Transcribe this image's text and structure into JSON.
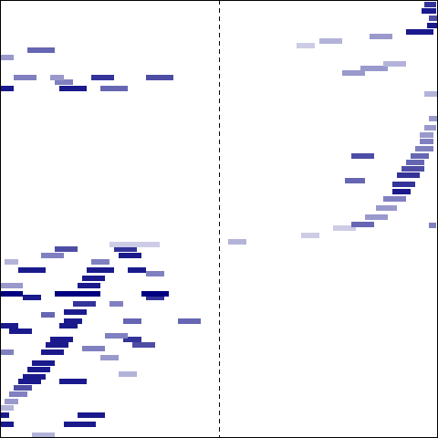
{
  "chart_data": {
    "type": "heatmap",
    "color": "#000080",
    "clim": [
      0,
      1
    ],
    "xlim": [
      0,
      480
    ],
    "ylim": [
      0,
      480
    ],
    "tick_labels": false,
    "grid": false,
    "vline": 240,
    "line_style": "dashed",
    "segments": [
      {
        "x": [
          30,
          60
        ],
        "y": 425,
        "value": 0.6
      },
      {
        "x": [
          0,
          15
        ],
        "y": 417,
        "value": 0.4
      },
      {
        "x": [
          15,
          40
        ],
        "y": 395,
        "value": 0.5
      },
      {
        "x": [
          100,
          125
        ],
        "y": 395,
        "value": 0.8
      },
      {
        "x": [
          160,
          190
        ],
        "y": 395,
        "value": 0.7
      },
      {
        "x": [
          55,
          70
        ],
        "y": 395,
        "value": 0.4
      },
      {
        "x": [
          60,
          80
        ],
        "y": 390,
        "value": 0.5
      },
      {
        "x": [
          0,
          15
        ],
        "y": 383,
        "value": 0.9
      },
      {
        "x": [
          65,
          95
        ],
        "y": 383,
        "value": 0.9
      },
      {
        "x": [
          110,
          140
        ],
        "y": 383,
        "value": 0.6
      },
      {
        "x": [
          120,
          175
        ],
        "y": 212,
        "value": 0.2
      },
      {
        "x": [
          60,
          85
        ],
        "y": 207,
        "value": 0.7
      },
      {
        "x": [
          125,
          150
        ],
        "y": 207,
        "value": 0.8
      },
      {
        "x": [
          45,
          70
        ],
        "y": 200,
        "value": 0.5
      },
      {
        "x": [
          130,
          155
        ],
        "y": 200,
        "value": 0.9
      },
      {
        "x": [
          5,
          20
        ],
        "y": 193,
        "value": 0.3
      },
      {
        "x": [
          100,
          120
        ],
        "y": 193,
        "value": 0.5
      },
      {
        "x": [
          20,
          50
        ],
        "y": 184,
        "value": 0.9
      },
      {
        "x": [
          95,
          125
        ],
        "y": 184,
        "value": 0.9
      },
      {
        "x": [
          140,
          160
        ],
        "y": 184,
        "value": 0.9
      },
      {
        "x": [
          160,
          180
        ],
        "y": 180,
        "value": 0.5
      },
      {
        "x": [
          90,
          115
        ],
        "y": 175,
        "value": 0.9
      },
      {
        "x": [
          0,
          25
        ],
        "y": 167,
        "value": 0.4
      },
      {
        "x": [
          85,
          110
        ],
        "y": 167,
        "value": 0.9
      },
      {
        "x": [
          0,
          25
        ],
        "y": 158,
        "value": 1
      },
      {
        "x": [
          60,
          110
        ],
        "y": 158,
        "value": 1
      },
      {
        "x": [
          155,
          185
        ],
        "y": 158,
        "value": 1
      },
      {
        "x": [
          25,
          45
        ],
        "y": 154,
        "value": 0.9
      },
      {
        "x": [
          160,
          180
        ],
        "y": 154,
        "value": 0.8
      },
      {
        "x": [
          80,
          105
        ],
        "y": 147,
        "value": 0.8
      },
      {
        "x": [
          120,
          135
        ],
        "y": 147,
        "value": 0.5
      },
      {
        "x": [
          70,
          95
        ],
        "y": 138,
        "value": 0.9
      },
      {
        "x": [
          45,
          60
        ],
        "y": 135,
        "value": 0.6
      },
      {
        "x": [
          70,
          90
        ],
        "y": 128,
        "value": 0.9
      },
      {
        "x": [
          135,
          155
        ],
        "y": 128,
        "value": 0.6
      },
      {
        "x": [
          195,
          220
        ],
        "y": 128,
        "value": 0.6
      },
      {
        "x": [
          0,
          20
        ],
        "y": 123,
        "value": 0.9
      },
      {
        "x": [
          65,
          85
        ],
        "y": 123,
        "value": 0.9
      },
      {
        "x": [
          10,
          35
        ],
        "y": 117,
        "value": 0.9
      },
      {
        "x": [
          115,
          140
        ],
        "y": 112,
        "value": 0.5
      },
      {
        "x": [
          55,
          80
        ],
        "y": 108,
        "value": 0.9
      },
      {
        "x": [
          135,
          155
        ],
        "y": 108,
        "value": 0.8
      },
      {
        "x": [
          50,
          75
        ],
        "y": 102,
        "value": 0.9
      },
      {
        "x": [
          145,
          170
        ],
        "y": 102,
        "value": 0.7
      },
      {
        "x": [
          90,
          115
        ],
        "y": 98,
        "value": 0.5
      },
      {
        "x": [
          0,
          15
        ],
        "y": 94,
        "value": 0.5
      },
      {
        "x": [
          45,
          70
        ],
        "y": 94,
        "value": 0.9
      },
      {
        "x": [
          110,
          130
        ],
        "y": 88,
        "value": 0.4
      },
      {
        "x": [
          35,
          60
        ],
        "y": 82,
        "value": 0.9
      },
      {
        "x": [
          30,
          55
        ],
        "y": 75,
        "value": 0.9
      },
      {
        "x": [
          130,
          150
        ],
        "y": 70,
        "value": 0.3
      },
      {
        "x": [
          25,
          50
        ],
        "y": 67,
        "value": 0.9
      },
      {
        "x": [
          20,
          45
        ],
        "y": 62,
        "value": 0.9
      },
      {
        "x": [
          65,
          95
        ],
        "y": 62,
        "value": 0.9
      },
      {
        "x": [
          15,
          35
        ],
        "y": 55,
        "value": 0.7
      },
      {
        "x": [
          10,
          30
        ],
        "y": 48,
        "value": 0.5
      },
      {
        "x": [
          5,
          20
        ],
        "y": 40,
        "value": 0.4
      },
      {
        "x": [
          0,
          15
        ],
        "y": 33,
        "value": 0.3
      },
      {
        "x": [
          0,
          10
        ],
        "y": 25,
        "value": 0.9
      },
      {
        "x": [
          85,
          115
        ],
        "y": 25,
        "value": 0.9
      },
      {
        "x": [
          0,
          15
        ],
        "y": 15,
        "value": 0.9
      },
      {
        "x": [
          70,
          105
        ],
        "y": 15,
        "value": 0.9
      },
      {
        "x": [
          35,
          60
        ],
        "y": 3,
        "value": 0.3
      },
      {
        "x": [
          465,
          478
        ],
        "y": 475,
        "value": 0.8
      },
      {
        "x": [
          462,
          478
        ],
        "y": 468,
        "value": 0.9
      },
      {
        "x": [
          470,
          480
        ],
        "y": 460,
        "value": 0.7
      },
      {
        "x": [
          468,
          480
        ],
        "y": 452,
        "value": 0.9
      },
      {
        "x": [
          445,
          475
        ],
        "y": 445,
        "value": 0.9
      },
      {
        "x": [
          405,
          430
        ],
        "y": 440,
        "value": 0.4
      },
      {
        "x": [
          350,
          375
        ],
        "y": 435,
        "value": 0.3
      },
      {
        "x": [
          325,
          345
        ],
        "y": 430,
        "value": 0.2
      },
      {
        "x": [
          420,
          445
        ],
        "y": 410,
        "value": 0.3
      },
      {
        "x": [
          395,
          425
        ],
        "y": 405,
        "value": 0.4
      },
      {
        "x": [
          375,
          400
        ],
        "y": 400,
        "value": 0.4
      },
      {
        "x": [
          465,
          480
        ],
        "y": 377,
        "value": 0.3
      },
      {
        "x": [
          470,
          480
        ],
        "y": 350,
        "value": 0.4
      },
      {
        "x": [
          465,
          478
        ],
        "y": 340,
        "value": 0.4
      },
      {
        "x": [
          460,
          475
        ],
        "y": 332,
        "value": 0.4
      },
      {
        "x": [
          460,
          475
        ],
        "y": 325,
        "value": 0.5
      },
      {
        "x": [
          455,
          475
        ],
        "y": 317,
        "value": 0.5
      },
      {
        "x": [
          385,
          410
        ],
        "y": 309,
        "value": 0.7
      },
      {
        "x": [
          450,
          470
        ],
        "y": 309,
        "value": 0.6
      },
      {
        "x": [
          445,
          465
        ],
        "y": 302,
        "value": 0.6
      },
      {
        "x": [
          440,
          465
        ],
        "y": 295,
        "value": 0.7
      },
      {
        "x": [
          435,
          460
        ],
        "y": 288,
        "value": 0.8
      },
      {
        "x": [
          378,
          400
        ],
        "y": 282,
        "value": 0.6
      },
      {
        "x": [
          430,
          455
        ],
        "y": 278,
        "value": 0.8
      },
      {
        "x": [
          430,
          450
        ],
        "y": 270,
        "value": 0.9
      },
      {
        "x": [
          420,
          445
        ],
        "y": 262,
        "value": 0.5
      },
      {
        "x": [
          412,
          435
        ],
        "y": 252,
        "value": 0.4
      },
      {
        "x": [
          400,
          425
        ],
        "y": 242,
        "value": 0.4
      },
      {
        "x": [
          385,
          410
        ],
        "y": 234,
        "value": 0.6
      },
      {
        "x": [
          470,
          478
        ],
        "y": 233,
        "value": 0.5
      },
      {
        "x": [
          365,
          390
        ],
        "y": 230,
        "value": 0.2
      },
      {
        "x": [
          330,
          350
        ],
        "y": 222,
        "value": 0.2
      },
      {
        "x": [
          250,
          270
        ],
        "y": 215,
        "value": 0.3
      }
    ]
  }
}
